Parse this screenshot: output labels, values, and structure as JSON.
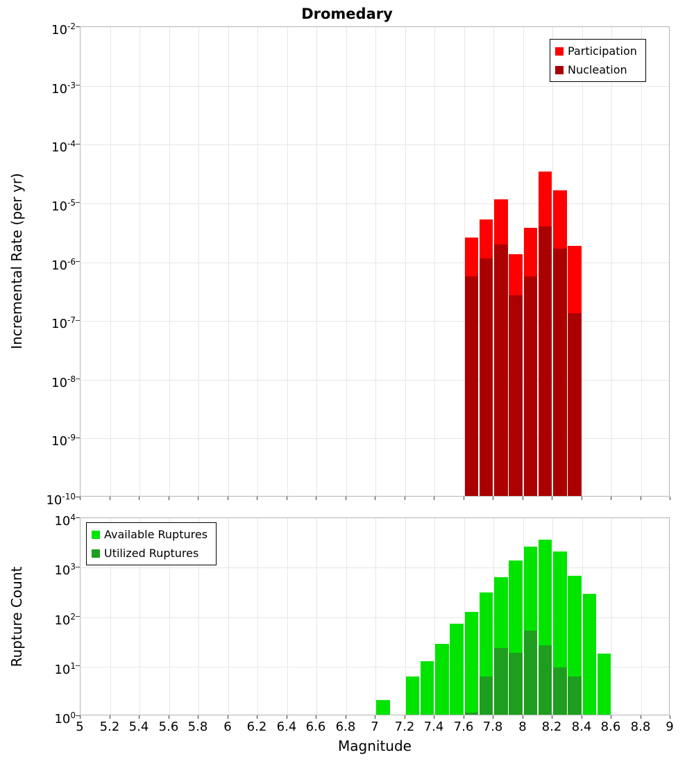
{
  "title": "Dromedary",
  "axes": {
    "x_label": "Magnitude",
    "x_ticks": [
      "5",
      "5.2",
      "5.4",
      "5.6",
      "5.8",
      "6",
      "6.2",
      "6.4",
      "6.6",
      "6.8",
      "7",
      "7.2",
      "7.4",
      "7.6",
      "7.8",
      "8",
      "8.2",
      "8.4",
      "8.6",
      "8.8",
      "9"
    ]
  },
  "colors": {
    "participation": "#ff0000",
    "nucleation": "#aa0000",
    "available": "#00e400",
    "utilized": "#1e9e1e",
    "grid": "#e6e6e6",
    "frame": "#b4b4b4"
  },
  "chart_data": [
    {
      "type": "bar",
      "title": "Dromedary",
      "ylabel": "Incremental Rate (per yr)",
      "xlabel": "",
      "yscale": "log",
      "ylim": [
        1e-10,
        0.01
      ],
      "xlim": [
        5,
        9
      ],
      "bar_width": 0.1,
      "grid": true,
      "legend_position": "top-right",
      "y_tick_exponents": [
        -10,
        -9,
        -8,
        -7,
        -6,
        -5,
        -4,
        -3,
        -2
      ],
      "series": [
        {
          "name": "Participation",
          "color": "#ff0000",
          "x": [
            7.6,
            7.7,
            7.8,
            7.9,
            8.0,
            8.1,
            8.2,
            8.3
          ],
          "values": [
            2.5e-06,
            5e-06,
            1.1e-05,
            1.3e-06,
            3.6e-06,
            3.3e-05,
            1.6e-05,
            1.8e-06
          ]
        },
        {
          "name": "Nucleation",
          "color": "#aa0000",
          "x": [
            7.6,
            7.7,
            7.8,
            7.9,
            8.0,
            8.1,
            8.2,
            8.3
          ],
          "values": [
            5.5e-07,
            1.1e-06,
            1.9e-06,
            2.6e-07,
            5.5e-07,
            3.9e-06,
            1.6e-06,
            1.3e-07
          ]
        }
      ]
    },
    {
      "type": "bar",
      "title": "",
      "ylabel": "Rupture Count",
      "xlabel": "Magnitude",
      "yscale": "log",
      "ylim": [
        1,
        10000.0
      ],
      "xlim": [
        5,
        9
      ],
      "bar_width": 0.1,
      "grid": true,
      "legend_position": "top-left",
      "y_tick_exponents": [
        0,
        1,
        2,
        3,
        4
      ],
      "series": [
        {
          "name": "Available Ruptures",
          "color": "#00e400",
          "x": [
            7.0,
            7.2,
            7.3,
            7.4,
            7.5,
            7.6,
            7.7,
            7.8,
            7.9,
            8.0,
            8.1,
            8.2,
            8.3,
            8.4,
            8.5
          ],
          "values": [
            2,
            6,
            12,
            27,
            70,
            120,
            300,
            600,
            1300,
            2500,
            3500,
            2000,
            650,
            280,
            17
          ]
        },
        {
          "name": "Utilized Ruptures",
          "color": "#1e9e1e",
          "x": [
            7.6,
            7.7,
            7.8,
            7.9,
            8.0,
            8.1,
            8.2,
            8.3
          ],
          "values": [
            1,
            6,
            22,
            18,
            50,
            25,
            9,
            6
          ]
        }
      ]
    }
  ]
}
